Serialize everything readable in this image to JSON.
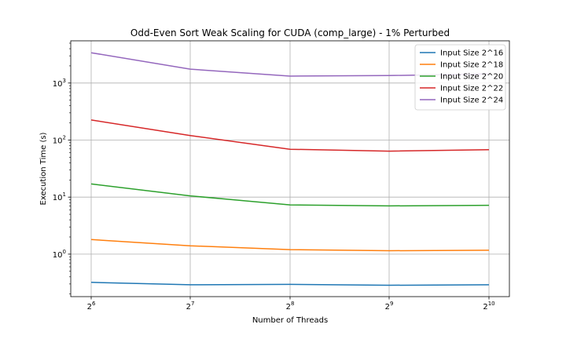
{
  "chart_data": {
    "type": "line",
    "title": "Odd-Even Sort Weak Scaling for CUDA (comp_large) - 1% Perturbed",
    "xlabel": "Number of Threads",
    "ylabel": "Execution Time (s)",
    "x": [
      64,
      128,
      256,
      512,
      1024
    ],
    "x_scale": "log2",
    "y_scale": "log10",
    "xtick_labels": [
      "2^6",
      "2^7",
      "2^8",
      "2^9",
      "2^10"
    ],
    "ytick_labels": [
      "10^0",
      "10^1",
      "10^2",
      "10^3"
    ],
    "ylim": [
      0.18,
      5500
    ],
    "grid": true,
    "legend_position": "top-right",
    "series": [
      {
        "name": "Input Size 2^16",
        "color": "#1f77b4",
        "values": [
          0.32,
          0.29,
          0.295,
          0.285,
          0.29
        ]
      },
      {
        "name": "Input Size 2^18",
        "color": "#ff7f0e",
        "values": [
          1.8,
          1.4,
          1.2,
          1.15,
          1.17
        ]
      },
      {
        "name": "Input Size 2^20",
        "color": "#2ca02c",
        "values": [
          17,
          10.5,
          7.3,
          7.0,
          7.2
        ]
      },
      {
        "name": "Input Size 2^22",
        "color": "#d62728",
        "values": [
          225,
          120,
          69,
          64,
          68
        ]
      },
      {
        "name": "Input Size 2^24",
        "color": "#9467bd",
        "values": [
          3400,
          1750,
          1320,
          1350,
          1450
        ]
      }
    ]
  }
}
